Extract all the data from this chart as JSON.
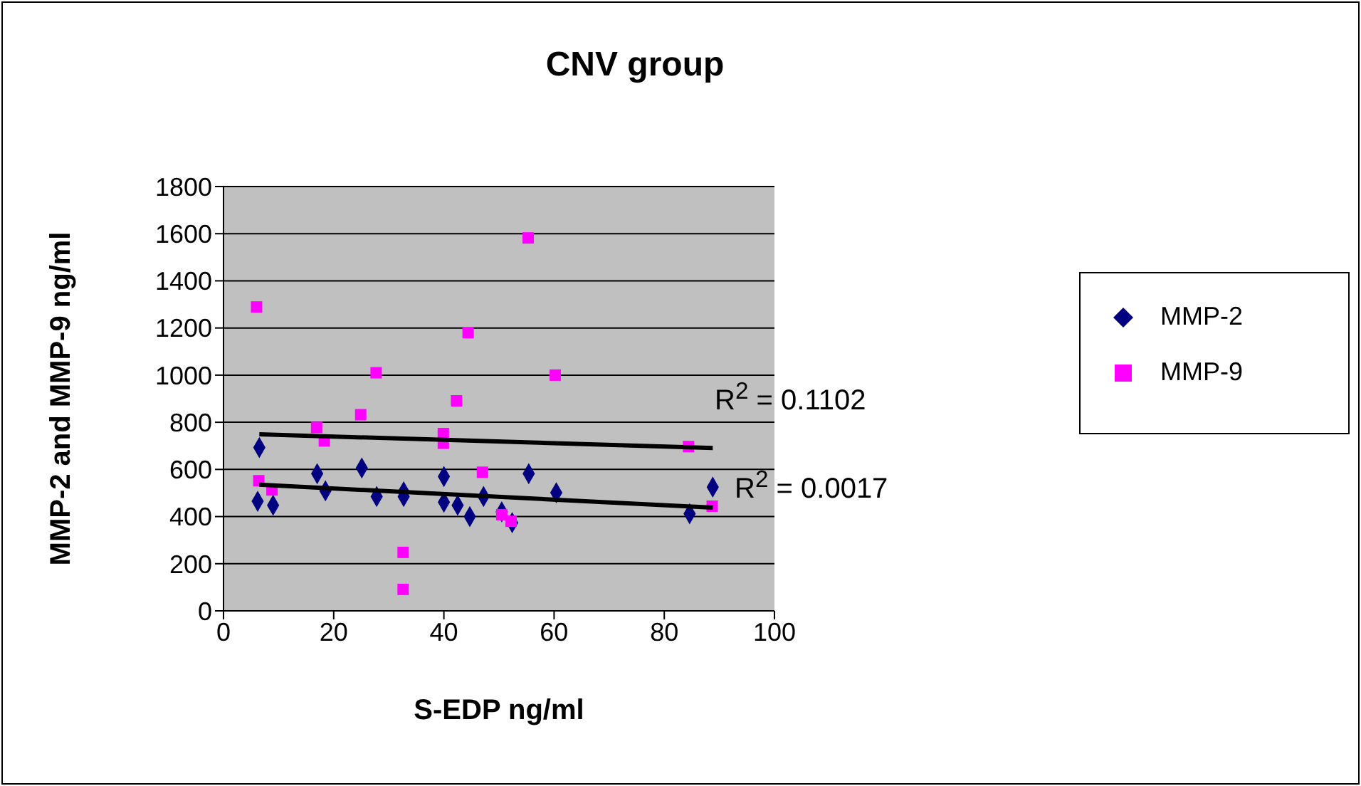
{
  "chart_data": {
    "type": "scatter",
    "title": "CNV group",
    "xlabel": "S-EDP ng/ml",
    "ylabel": "MMP-2 and MMP-9 ng/ml",
    "xlim": [
      0,
      100
    ],
    "xticks": [
      0,
      20,
      40,
      60,
      80,
      100
    ],
    "ylim": [
      0,
      1800
    ],
    "yticks": [
      0,
      200,
      400,
      600,
      800,
      1000,
      1200,
      1400,
      1600,
      1800
    ],
    "grid": "y",
    "legend": "right",
    "series": [
      {
        "name": "MMP-2",
        "color": "#000080",
        "marker": "diamond",
        "x": [
          6.5,
          6.2,
          9.0,
          17.0,
          18.5,
          25.1,
          27.8,
          32.7,
          32.7,
          40.0,
          40.0,
          42.5,
          44.7,
          47.2,
          50.5,
          52.4,
          55.4,
          60.4,
          84.6,
          88.8
        ],
        "values": [
          693,
          465,
          448,
          582,
          509,
          606,
          485,
          505,
          485,
          570,
          461,
          448,
          400,
          485,
          420,
          374,
          582,
          501,
          412,
          525
        ]
      },
      {
        "name": "MMP-9",
        "color": "#ff00ff",
        "marker": "square",
        "x": [
          6.0,
          6.4,
          8.8,
          16.9,
          18.3,
          24.9,
          27.7,
          32.6,
          32.6,
          39.9,
          39.9,
          42.3,
          44.4,
          47.0,
          50.5,
          52.2,
          55.3,
          60.2,
          84.4,
          88.7
        ],
        "values": [
          1289,
          552,
          513,
          778,
          721,
          832,
          1010,
          248,
          91,
          752,
          711,
          891,
          1180,
          588,
          408,
          380,
          1582,
          1000,
          697,
          444
        ]
      },
      {
        "type": "line",
        "color": "#000000",
        "marker": "none",
        "x": [
          6.5,
          88.8
        ],
        "values": [
          749,
          691
        ]
      },
      {
        "type": "line",
        "color": "#000000",
        "marker": "none",
        "x": [
          6.5,
          88.8
        ],
        "values": [
          535,
          438
        ]
      }
    ],
    "annotations": [
      "R$^{2}$ = 0.1102",
      "R$^{2}$ = 0.0017"
    ]
  }
}
